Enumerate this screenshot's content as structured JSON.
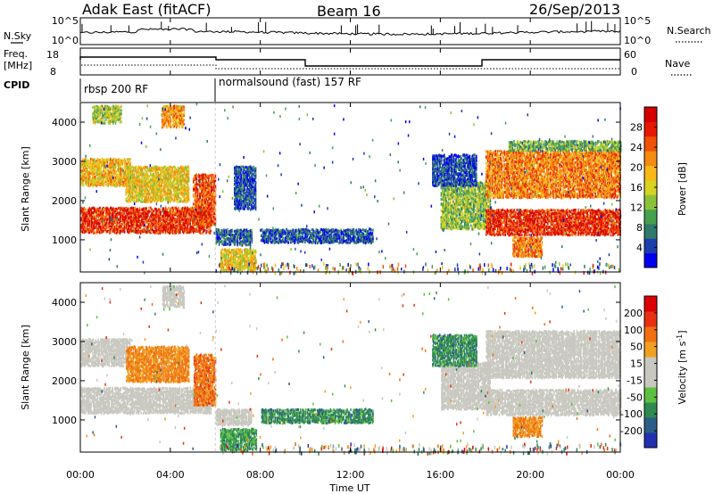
{
  "header": {
    "station": "Adak East (fitACF)",
    "beam": "Beam 16",
    "date": "26/Sep/2013"
  },
  "noise_panel": {
    "left_label": "N.Sky",
    "left_ticks": [
      "10^5",
      "10^0"
    ],
    "right_label": "N.Search",
    "right_ticks": [
      "10^5",
      "10^0"
    ]
  },
  "freq_panel": {
    "label_top": "Freq.",
    "label_bottom": "[MHz]",
    "left_ticks": [
      "18",
      "8"
    ],
    "right_label": "Nave",
    "right_ticks": [
      "60",
      "0"
    ]
  },
  "cpid": {
    "label": "CPID",
    "segments": [
      {
        "start_hour": 0,
        "end_hour": 6,
        "text": "rbsp 200 RF"
      },
      {
        "start_hour": 6,
        "end_hour": 24,
        "text": "normalsound (fast) 157 RF"
      }
    ]
  },
  "chart_data": [
    {
      "type": "heatmap",
      "name": "power",
      "ylabel": "Slant Range [km]",
      "y_ticks": [
        "4000",
        "3000",
        "2000",
        "1000"
      ],
      "ylim": [
        180,
        4500
      ],
      "x_range_hours": [
        0,
        24
      ],
      "colorbar_label": "Power [dB]",
      "colorbar_ticks": [
        "28",
        "24",
        "20",
        "16",
        "12",
        "8",
        "4"
      ],
      "colorbar_colors": [
        "#0000ee",
        "#1c3fb0",
        "#2f7a6a",
        "#46a050",
        "#8cc23a",
        "#d8d220",
        "#f8b818",
        "#f48c10",
        "#f05208",
        "#e81800",
        "#d40000"
      ],
      "echo_regions": [
        {
          "h0": 0.0,
          "h1": 5.8,
          "r0": 1200,
          "r1": 1850,
          "level": 0.85
        },
        {
          "h0": 0.0,
          "h1": 2.2,
          "r0": 2400,
          "r1": 3100,
          "level": 0.6
        },
        {
          "h0": 2.0,
          "h1": 4.8,
          "r0": 2000,
          "r1": 2900,
          "level": 0.55
        },
        {
          "h0": 0.5,
          "h1": 1.8,
          "r0": 4000,
          "r1": 4450,
          "level": 0.45
        },
        {
          "h0": 3.6,
          "h1": 4.6,
          "r0": 3900,
          "r1": 4450,
          "level": 0.65
        },
        {
          "h0": 5.0,
          "h1": 6.0,
          "r0": 1400,
          "r1": 2700,
          "level": 0.8
        },
        {
          "h0": 6.0,
          "h1": 7.6,
          "r0": 900,
          "r1": 1300,
          "level": 0.2
        },
        {
          "h0": 6.2,
          "h1": 7.8,
          "r0": 250,
          "r1": 800,
          "level": 0.55
        },
        {
          "h0": 8.0,
          "h1": 13.0,
          "r0": 950,
          "r1": 1300,
          "level": 0.15
        },
        {
          "h0": 6.8,
          "h1": 7.8,
          "r0": 1800,
          "r1": 2900,
          "level": 0.15
        },
        {
          "h0": 16.0,
          "h1": 18.2,
          "r0": 1300,
          "r1": 2500,
          "level": 0.4
        },
        {
          "h0": 15.6,
          "h1": 17.6,
          "r0": 2400,
          "r1": 3200,
          "level": 0.15
        },
        {
          "h0": 18.0,
          "h1": 24.0,
          "r0": 1150,
          "r1": 1800,
          "level": 0.85
        },
        {
          "h0": 18.0,
          "h1": 24.0,
          "r0": 2100,
          "r1": 3300,
          "level": 0.7
        },
        {
          "h0": 19.0,
          "h1": 24.0,
          "r0": 3300,
          "r1": 3550,
          "level": 0.35
        },
        {
          "h0": 19.2,
          "h1": 20.5,
          "r0": 600,
          "r1": 1100,
          "level": 0.7
        }
      ]
    },
    {
      "type": "heatmap",
      "name": "velocity",
      "ylabel": "Slant Range [km]",
      "y_ticks": [
        "4000",
        "3000",
        "2000",
        "1000"
      ],
      "ylim": [
        180,
        4500
      ],
      "x_range_hours": [
        0,
        24
      ],
      "x_ticks": [
        "00:00",
        "04:00",
        "08:00",
        "12:00",
        "16:00",
        "20:00",
        "00:00"
      ],
      "xlabel": "Time UT",
      "colorbar_label": "Velocity [m s",
      "colorbar_label_sup": "-1",
      "colorbar_label_end": "]",
      "colorbar_ticks": [
        "200",
        "100",
        "50",
        "15",
        "-15",
        "-50",
        "-100",
        "-200"
      ],
      "colorbar_colors": [
        "#2230b0",
        "#2a5e88",
        "#2f8a52",
        "#5ec040",
        "#c8c8c0",
        "#c8c8c0",
        "#f0a020",
        "#f07010",
        "#e83010",
        "#dd0000"
      ],
      "echo_regions": [
        {
          "h0": 0.0,
          "h1": 5.8,
          "r0": 1200,
          "r1": 1850,
          "level": 0.0
        },
        {
          "h0": 0.0,
          "h1": 2.2,
          "r0": 2400,
          "r1": 3100,
          "level": 0.0
        },
        {
          "h0": 2.0,
          "h1": 4.8,
          "r0": 2000,
          "r1": 2900,
          "level": -0.4
        },
        {
          "h0": 3.6,
          "h1": 4.6,
          "r0": 3900,
          "r1": 4450,
          "level": 0.0
        },
        {
          "h0": 5.0,
          "h1": 6.0,
          "r0": 1400,
          "r1": 2700,
          "level": -0.5
        },
        {
          "h0": 6.2,
          "h1": 7.8,
          "r0": 250,
          "r1": 800,
          "level": 0.45
        },
        {
          "h0": 6.0,
          "h1": 7.6,
          "r0": 900,
          "r1": 1300,
          "level": 0.0
        },
        {
          "h0": 8.0,
          "h1": 13.0,
          "r0": 950,
          "r1": 1300,
          "level": 0.5
        },
        {
          "h0": 16.0,
          "h1": 18.2,
          "r0": 1300,
          "r1": 2500,
          "level": 0.0
        },
        {
          "h0": 15.6,
          "h1": 17.6,
          "r0": 2400,
          "r1": 3200,
          "level": 0.5
        },
        {
          "h0": 18.0,
          "h1": 24.0,
          "r0": 1150,
          "r1": 1800,
          "level": 0.0
        },
        {
          "h0": 18.0,
          "h1": 24.0,
          "r0": 2100,
          "r1": 3300,
          "level": 0.0
        },
        {
          "h0": 19.2,
          "h1": 20.5,
          "r0": 600,
          "r1": 1100,
          "level": -0.4
        }
      ]
    }
  ]
}
